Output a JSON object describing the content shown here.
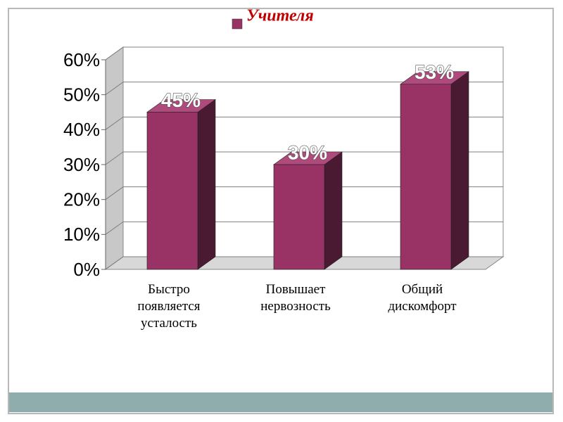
{
  "chart_data": {
    "type": "bar3d",
    "categories": [
      "Быстро появляется усталость",
      "Повышает нервозность",
      "Общий дискомфорт"
    ],
    "series": [
      {
        "name": "Учителя",
        "color": "#993366",
        "values": [
          45,
          30,
          53
        ],
        "value_labels": [
          "45%",
          "30%",
          "53%"
        ]
      }
    ],
    "ylim": [
      0,
      60
    ],
    "yticks": [
      {
        "value": 0,
        "label": "0%"
      },
      {
        "value": 10,
        "label": "10%"
      },
      {
        "value": 20,
        "label": "20%"
      },
      {
        "value": 30,
        "label": "30%"
      },
      {
        "value": 40,
        "label": "40%"
      },
      {
        "value": 50,
        "label": "50%"
      },
      {
        "value": 60,
        "label": "60%"
      }
    ],
    "grid": true,
    "legend": "top"
  }
}
